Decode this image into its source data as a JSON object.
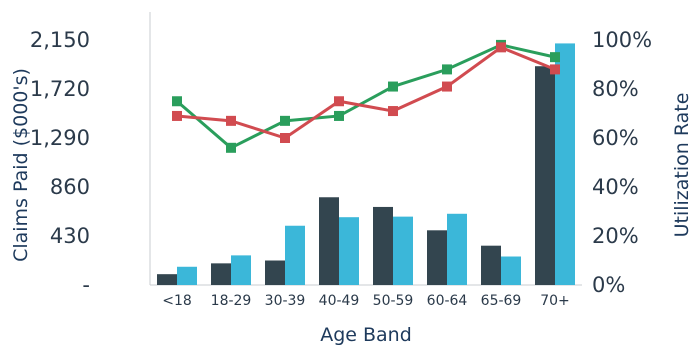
{
  "chart_data": {
    "type": "bar",
    "categories": [
      "<18",
      "18-29",
      "30-39",
      "40-49",
      "50-59",
      "60-64",
      "65-69",
      "70+"
    ],
    "xlabel": "Age Band",
    "ylabel_left": "Claims Paid ($000's)",
    "ylabel_right": "Utilization Rate",
    "left_axis": {
      "ticks": [
        0,
        430,
        860,
        1290,
        1720,
        2150
      ],
      "tick_labels": [
        "-",
        "430",
        "860",
        "1,290",
        "1,720",
        "2,150"
      ],
      "ylim": [
        0,
        2150
      ]
    },
    "right_axis": {
      "ticks": [
        0,
        20,
        40,
        60,
        80,
        100
      ],
      "tick_labels": [
        "0%",
        "20%",
        "40%",
        "60%",
        "80%",
        "100%"
      ],
      "ylim": [
        0,
        100
      ]
    },
    "bar_series": [
      {
        "axis": "left",
        "color": "#33454f",
        "values": [
          95,
          190,
          215,
          770,
          685,
          480,
          345,
          1920
        ]
      },
      {
        "axis": "left",
        "color": "#3bb7d9",
        "values": [
          160,
          260,
          520,
          595,
          600,
          625,
          250,
          2120
        ]
      }
    ],
    "line_series": [
      {
        "axis": "right",
        "color": "#2a9e5c",
        "marker": "square",
        "values": [
          75,
          56,
          67,
          69,
          81,
          88,
          98,
          93
        ]
      },
      {
        "axis": "right",
        "color": "#d14b50",
        "marker": "square",
        "values": [
          69,
          67,
          60,
          75,
          71,
          81,
          97,
          88
        ]
      }
    ],
    "grid": false,
    "legend": "none"
  }
}
